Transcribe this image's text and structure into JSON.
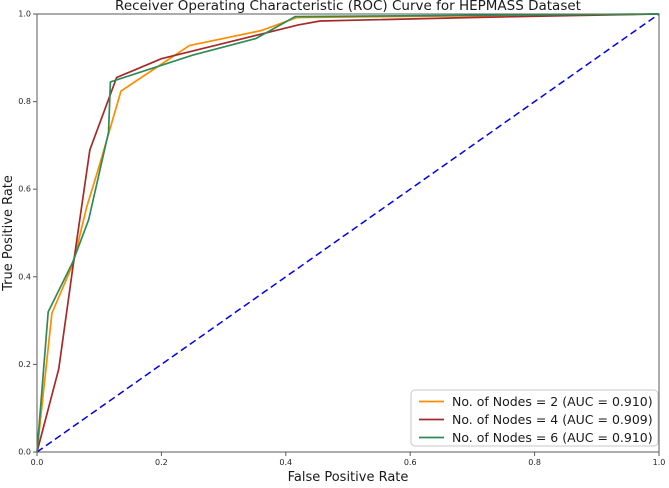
{
  "figure": {
    "background": "#ffffff",
    "spine_color": "#5a5a5a",
    "tick_color": "#262626"
  },
  "chart_data": {
    "type": "line",
    "title": "Receiver Operating Characteristic (ROC) Curve for HEPMASS Dataset",
    "xlabel": "False Positive Rate",
    "ylabel": "True Positive Rate",
    "xlim": [
      0.0,
      1.0
    ],
    "ylim": [
      0.0,
      1.0
    ],
    "grid": false,
    "x_ticks": [
      "0.0",
      "0.2",
      "0.4",
      "0.6",
      "0.8",
      "1.0"
    ],
    "y_ticks": [
      "0.0",
      "0.2",
      "0.4",
      "0.6",
      "0.8",
      "1.0"
    ],
    "legend_position": "lower right",
    "series": [
      {
        "name": "No. of Nodes = 2 (AUC = 0.910)",
        "nodes": 2,
        "auc": 0.91,
        "color": "#FF8C00",
        "style": "solid",
        "points": [
          [
            0.0,
            0.0
          ],
          [
            0.024,
            0.317
          ],
          [
            0.058,
            0.43
          ],
          [
            0.08,
            0.56
          ],
          [
            0.099,
            0.648
          ],
          [
            0.135,
            0.824
          ],
          [
            0.245,
            0.928
          ],
          [
            0.36,
            0.962
          ],
          [
            0.418,
            0.992
          ],
          [
            0.7,
            0.996
          ],
          [
            1.0,
            1.0
          ]
        ]
      },
      {
        "name": "No. of Nodes = 4 (AUC = 0.909)",
        "nodes": 4,
        "auc": 0.909,
        "color": "#A52A2A",
        "style": "solid",
        "points": [
          [
            0.0,
            0.0
          ],
          [
            0.035,
            0.19
          ],
          [
            0.058,
            0.425
          ],
          [
            0.085,
            0.69
          ],
          [
            0.115,
            0.805
          ],
          [
            0.128,
            0.855
          ],
          [
            0.2,
            0.898
          ],
          [
            0.42,
            0.975
          ],
          [
            0.455,
            0.984
          ],
          [
            0.7,
            0.992
          ],
          [
            1.0,
            1.0
          ]
        ]
      },
      {
        "name": "No. of Nodes = 6 (AUC = 0.910)",
        "nodes": 6,
        "auc": 0.91,
        "color": "#2E8B57",
        "style": "solid",
        "points": [
          [
            0.0,
            0.0
          ],
          [
            0.018,
            0.32
          ],
          [
            0.057,
            0.432
          ],
          [
            0.083,
            0.53
          ],
          [
            0.115,
            0.73
          ],
          [
            0.118,
            0.845
          ],
          [
            0.25,
            0.906
          ],
          [
            0.352,
            0.944
          ],
          [
            0.415,
            0.994
          ],
          [
            0.7,
            0.997
          ],
          [
            1.0,
            1.0
          ]
        ]
      }
    ],
    "reference_line": {
      "name": "chance-diagonal",
      "color": "#0000EE",
      "style": "dashed",
      "points": [
        [
          0.0,
          0.0
        ],
        [
          1.0,
          1.0
        ]
      ]
    }
  }
}
